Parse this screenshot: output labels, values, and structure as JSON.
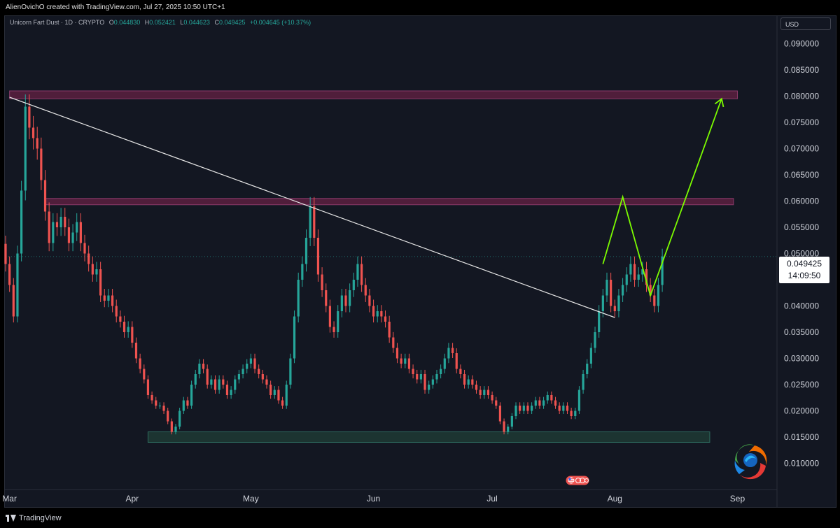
{
  "header": {
    "author_line": "AlienOvichO created with TradingView.com, Jul 27, 2025 10:50 UTC+1"
  },
  "legend": {
    "symbol": "Unicorn Fart Dust · 1D · CRYPTO",
    "o_label": "O",
    "o_value": "0.044830",
    "h_label": "H",
    "h_value": "0.052421",
    "l_label": "L",
    "l_value": "0.044623",
    "c_label": "C",
    "c_value": "0.049425",
    "change": "+0.004645 (+10.37%)"
  },
  "currency": "USD",
  "price_tag": {
    "price": "0.049425",
    "countdown": "14:09:50"
  },
  "footer": {
    "brand": "TradingView"
  },
  "colors": {
    "background": "#131722",
    "up": "#26a69a",
    "down": "#ef5350",
    "resistance_zone": "#5c2040",
    "support_zone": "#1e3a34",
    "trendline": "#e6e6e6",
    "projection": "#7cfc00"
  },
  "icons": {
    "logo": "circular-swirl-logo-icon",
    "badge": "us-flag-event-badge-icon",
    "brand": "tradingview-logo-icon"
  },
  "chart_data": {
    "type": "candlestick",
    "title": "",
    "y_axis": {
      "range": [
        0.005,
        0.093
      ],
      "ticks": [
        "0.010000",
        "0.015000",
        "0.020000",
        "0.025000",
        "0.030000",
        "0.035000",
        "0.040000",
        "0.045000",
        "0.050000",
        "0.055000",
        "0.060000",
        "0.065000",
        "0.070000",
        "0.075000",
        "0.080000",
        "0.085000",
        "0.090000"
      ]
    },
    "x_axis": {
      "range": [
        "2025-02-28",
        "2025-09-11"
      ],
      "ticks": [
        {
          "label": "Mar",
          "date": "2025-03-01"
        },
        {
          "label": "Apr",
          "date": "2025-04-01"
        },
        {
          "label": "May",
          "date": "2025-05-01"
        },
        {
          "label": "Jun",
          "date": "2025-06-01"
        },
        {
          "label": "Jul",
          "date": "2025-07-01"
        },
        {
          "label": "Aug",
          "date": "2025-08-01"
        },
        {
          "label": "Sep",
          "date": "2025-09-01"
        }
      ]
    },
    "grid": false,
    "current_price_line": 0.049425,
    "candles_close": [
      0.048,
      0.044,
      0.038,
      0.05,
      0.062,
      0.078,
      0.074,
      0.072,
      0.07,
      0.064,
      0.058,
      0.052,
      0.056,
      0.055,
      0.057,
      0.055,
      0.052,
      0.054,
      0.056,
      0.052,
      0.05,
      0.048,
      0.046,
      0.047,
      0.042,
      0.041,
      0.042,
      0.04,
      0.038,
      0.037,
      0.035,
      0.036,
      0.033,
      0.03,
      0.028,
      0.026,
      0.023,
      0.022,
      0.021,
      0.021,
      0.02,
      0.018,
      0.016,
      0.017,
      0.02,
      0.022,
      0.021,
      0.025,
      0.027,
      0.029,
      0.028,
      0.025,
      0.026,
      0.024,
      0.026,
      0.025,
      0.023,
      0.024,
      0.026,
      0.027,
      0.028,
      0.029,
      0.03,
      0.028,
      0.027,
      0.026,
      0.025,
      0.023,
      0.024,
      0.022,
      0.021,
      0.025,
      0.03,
      0.038,
      0.045,
      0.048,
      0.053,
      0.059,
      0.053,
      0.046,
      0.043,
      0.04,
      0.036,
      0.035,
      0.039,
      0.042,
      0.04,
      0.043,
      0.045,
      0.048,
      0.044,
      0.042,
      0.04,
      0.038,
      0.039,
      0.038,
      0.037,
      0.034,
      0.032,
      0.03,
      0.029,
      0.03,
      0.028,
      0.027,
      0.026,
      0.027,
      0.024,
      0.025,
      0.026,
      0.027,
      0.028,
      0.03,
      0.032,
      0.031,
      0.028,
      0.027,
      0.025,
      0.026,
      0.025,
      0.024,
      0.023,
      0.024,
      0.023,
      0.022,
      0.021,
      0.018,
      0.016,
      0.017,
      0.019,
      0.021,
      0.02,
      0.021,
      0.02,
      0.021,
      0.022,
      0.021,
      0.022,
      0.023,
      0.022,
      0.021,
      0.02,
      0.021,
      0.02,
      0.019,
      0.02,
      0.024,
      0.027,
      0.029,
      0.032,
      0.035,
      0.039,
      0.042,
      0.045,
      0.04,
      0.039,
      0.042,
      0.044,
      0.046,
      0.048,
      0.045,
      0.046,
      0.047,
      0.044,
      0.042,
      0.04,
      0.044,
      0.049425
    ],
    "zones": [
      {
        "name": "upper resistance",
        "from": 0.0795,
        "to": 0.081,
        "start": "2025-03-01",
        "end": "2025-09-01"
      },
      {
        "name": "mid resistance",
        "from": 0.0593,
        "to": 0.0605,
        "start": "2025-03-10",
        "end": "2025-08-31"
      },
      {
        "name": "support",
        "from": 0.014,
        "to": 0.016,
        "start": "2025-04-05",
        "end": "2025-08-25"
      }
    ],
    "trendline": [
      {
        "date": "2025-03-01",
        "price": 0.0798
      },
      {
        "date": "2025-08-01",
        "price": 0.0378
      }
    ],
    "projection_path": [
      {
        "date": "2025-07-29",
        "price": 0.048
      },
      {
        "date": "2025-08-03",
        "price": 0.0608
      },
      {
        "date": "2025-08-10",
        "price": 0.042
      },
      {
        "date": "2025-08-28",
        "price": 0.0795
      }
    ]
  }
}
